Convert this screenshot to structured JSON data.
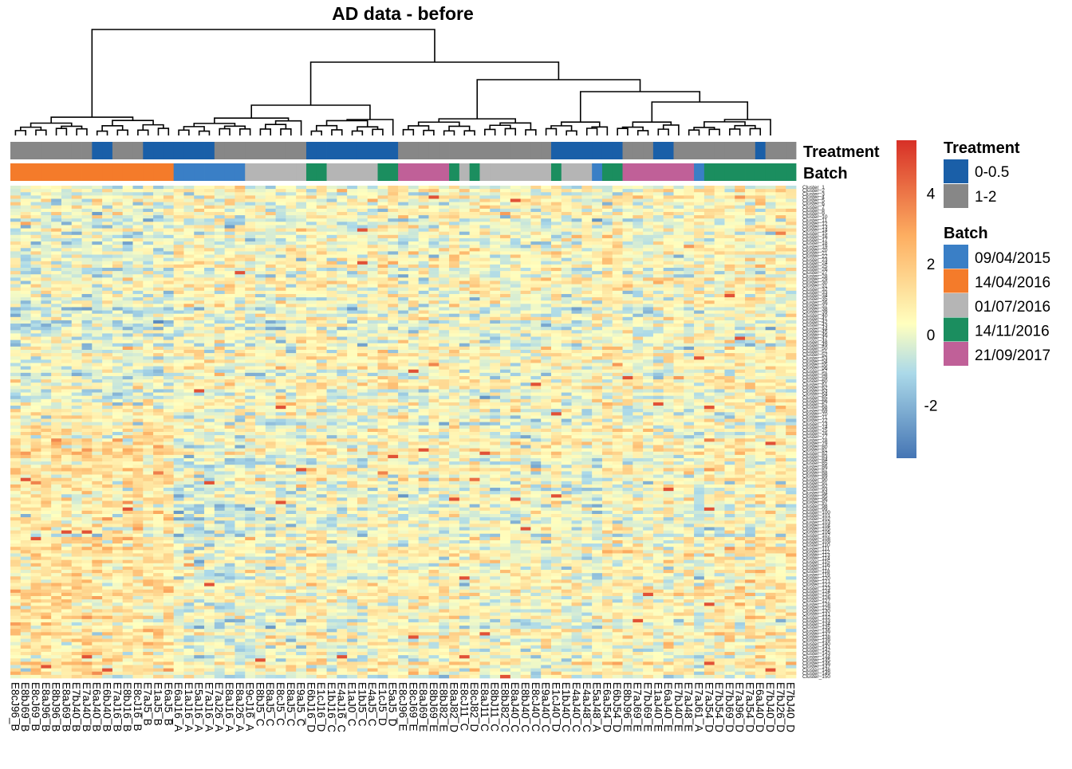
{
  "chart_data": {
    "type": "heatmap",
    "title": "AD data - before",
    "annotation_tracks": [
      "Treatment",
      "Batch"
    ],
    "columns": [
      {
        "label": "E8cJ96_B",
        "treatment": "1-2",
        "batch": "14/04/2016"
      },
      {
        "label": "E8bJ69_B",
        "treatment": "1-2",
        "batch": "14/04/2016"
      },
      {
        "label": "E8cJ69_B",
        "treatment": "1-2",
        "batch": "14/04/2016"
      },
      {
        "label": "E8aJ96_B",
        "treatment": "1-2",
        "batch": "14/04/2016"
      },
      {
        "label": "E8bJ96_B",
        "treatment": "1-2",
        "batch": "14/04/2016"
      },
      {
        "label": "E8aJ69_B",
        "treatment": "1-2",
        "batch": "14/04/2016"
      },
      {
        "label": "E7bJ40_B",
        "treatment": "1-2",
        "batch": "14/04/2016"
      },
      {
        "label": "E7aJ40_B",
        "treatment": "1-2",
        "batch": "14/04/2016"
      },
      {
        "label": "E6aJ40_B",
        "treatment": "0-0.5",
        "batch": "14/04/2016"
      },
      {
        "label": "E6bJ40_B",
        "treatment": "0-0.5",
        "batch": "14/04/2016"
      },
      {
        "label": "E7aJ16_B",
        "treatment": "1-2",
        "batch": "14/04/2016"
      },
      {
        "label": "E8bJ16_B",
        "treatment": "1-2",
        "batch": "14/04/2016"
      },
      {
        "label": "E8cJ16_B",
        "treatment": "1-2",
        "batch": "14/04/2016"
      },
      {
        "label": "E7aJ5_B",
        "treatment": "0-0.5",
        "batch": "14/04/2016"
      },
      {
        "label": "E1aJ5_B",
        "treatment": "0-0.5",
        "batch": "14/04/2016"
      },
      {
        "label": "E6aJ5_B",
        "treatment": "0-0.5",
        "batch": "14/04/2016"
      },
      {
        "label": "E6aJ16_A",
        "treatment": "0-0.5",
        "batch": "09/04/2015"
      },
      {
        "label": "E1aJ16_A",
        "treatment": "0-0.5",
        "batch": "09/04/2015"
      },
      {
        "label": "E5aJ16_A",
        "treatment": "0-0.5",
        "batch": "09/04/2015"
      },
      {
        "label": "E7aJ16_A",
        "treatment": "0-0.5",
        "batch": "09/04/2015"
      },
      {
        "label": "E7aJ26_A",
        "treatment": "1-2",
        "batch": "09/04/2015"
      },
      {
        "label": "E8aJ16_A",
        "treatment": "1-2",
        "batch": "09/04/2015"
      },
      {
        "label": "E8aJ26_A",
        "treatment": "1-2",
        "batch": "09/04/2015"
      },
      {
        "label": "E9cJ16_A",
        "treatment": "1-2",
        "batch": "01/07/2016"
      },
      {
        "label": "E8bJ5_C",
        "treatment": "1-2",
        "batch": "01/07/2016"
      },
      {
        "label": "E8aJ5_C",
        "treatment": "1-2",
        "batch": "01/07/2016"
      },
      {
        "label": "E8cJ5_C",
        "treatment": "1-2",
        "batch": "01/07/2016"
      },
      {
        "label": "E8aJ5_C",
        "treatment": "1-2",
        "batch": "01/07/2016"
      },
      {
        "label": "E9aJ5_C",
        "treatment": "1-2",
        "batch": "01/07/2016"
      },
      {
        "label": "E6bJ16_D",
        "treatment": "0-0.5",
        "batch": "14/11/2016"
      },
      {
        "label": "E1cJ16_D",
        "treatment": "0-0.5",
        "batch": "14/11/2016"
      },
      {
        "label": "E1bJ16_C",
        "treatment": "0-0.5",
        "batch": "01/07/2016"
      },
      {
        "label": "E4aJ16_C",
        "treatment": "0-0.5",
        "batch": "01/07/2016"
      },
      {
        "label": "E1aJ0_C",
        "treatment": "0-0.5",
        "batch": "01/07/2016"
      },
      {
        "label": "E1bJ5_C",
        "treatment": "0-0.5",
        "batch": "01/07/2016"
      },
      {
        "label": "E4aJ5_C",
        "treatment": "0-0.5",
        "batch": "01/07/2016"
      },
      {
        "label": "E1cJ5_D",
        "treatment": "0-0.5",
        "batch": "14/11/2016"
      },
      {
        "label": "E5aJ5_D",
        "treatment": "0-0.5",
        "batch": "14/11/2016"
      },
      {
        "label": "E8cJ96_E",
        "treatment": "1-2",
        "batch": "21/09/2017"
      },
      {
        "label": "E8cJ69_E",
        "treatment": "1-2",
        "batch": "21/09/2017"
      },
      {
        "label": "E8aJ69_E",
        "treatment": "1-2",
        "batch": "21/09/2017"
      },
      {
        "label": "E8bJ69_E",
        "treatment": "1-2",
        "batch": "21/09/2017"
      },
      {
        "label": "E8bJ82_E",
        "treatment": "1-2",
        "batch": "21/09/2017"
      },
      {
        "label": "E8aJ82_D",
        "treatment": "1-2",
        "batch": "14/11/2016"
      },
      {
        "label": "E8cJ11_C",
        "treatment": "1-2",
        "batch": "01/07/2016"
      },
      {
        "label": "E8cJ82_D",
        "treatment": "1-2",
        "batch": "14/11/2016"
      },
      {
        "label": "E8aJ11_C",
        "treatment": "1-2",
        "batch": "01/07/2016"
      },
      {
        "label": "E8bJ11_C",
        "treatment": "1-2",
        "batch": "01/07/2016"
      },
      {
        "label": "E8bJ82_C",
        "treatment": "1-2",
        "batch": "01/07/2016"
      },
      {
        "label": "E8aJ40_C",
        "treatment": "1-2",
        "batch": "01/07/2016"
      },
      {
        "label": "E8bJ40_C",
        "treatment": "1-2",
        "batch": "01/07/2016"
      },
      {
        "label": "E8cJ40_C",
        "treatment": "1-2",
        "batch": "01/07/2016"
      },
      {
        "label": "E9aJ40_C",
        "treatment": "1-2",
        "batch": "01/07/2016"
      },
      {
        "label": "E1cJ40_D",
        "treatment": "0-0.5",
        "batch": "14/11/2016"
      },
      {
        "label": "E1bJ40_C",
        "treatment": "0-0.5",
        "batch": "01/07/2016"
      },
      {
        "label": "E4aJ40_C",
        "treatment": "0-0.5",
        "batch": "01/07/2016"
      },
      {
        "label": "E4aJ48_C",
        "treatment": "0-0.5",
        "batch": "01/07/2016"
      },
      {
        "label": "E5aJ48_A",
        "treatment": "0-0.5",
        "batch": "09/04/2015"
      },
      {
        "label": "E6aJ54_D",
        "treatment": "0-0.5",
        "batch": "14/11/2016"
      },
      {
        "label": "E6bJ54_D",
        "treatment": "0-0.5",
        "batch": "14/11/2016"
      },
      {
        "label": "E8bJ96_E",
        "treatment": "1-2",
        "batch": "21/09/2017"
      },
      {
        "label": "E7aJ69_E",
        "treatment": "1-2",
        "batch": "21/09/2017"
      },
      {
        "label": "E7bJ69_E",
        "treatment": "1-2",
        "batch": "21/09/2017"
      },
      {
        "label": "E1aJ40_E",
        "treatment": "0-0.5",
        "batch": "21/09/2017"
      },
      {
        "label": "E6aJ40_E",
        "treatment": "0-0.5",
        "batch": "21/09/2017"
      },
      {
        "label": "E7bJ40_E",
        "treatment": "1-2",
        "batch": "21/09/2017"
      },
      {
        "label": "E7aJ48_E",
        "treatment": "1-2",
        "batch": "21/09/2017"
      },
      {
        "label": "E7aJ61_A",
        "treatment": "1-2",
        "batch": "09/04/2015"
      },
      {
        "label": "E7aJ54_D",
        "treatment": "1-2",
        "batch": "14/11/2016"
      },
      {
        "label": "E7bJ54_D",
        "treatment": "1-2",
        "batch": "14/11/2016"
      },
      {
        "label": "E7bJ69_D",
        "treatment": "1-2",
        "batch": "14/11/2016"
      },
      {
        "label": "E7aJ96_D",
        "treatment": "1-2",
        "batch": "14/11/2016"
      },
      {
        "label": "E7aJ54_D",
        "treatment": "1-2",
        "batch": "14/11/2016"
      },
      {
        "label": "E6aJ40_D",
        "treatment": "0-0.5",
        "batch": "14/11/2016"
      },
      {
        "label": "E7bJ40_D",
        "treatment": "1-2",
        "batch": "14/11/2016"
      },
      {
        "label": "E7bJ26_D",
        "treatment": "1-2",
        "batch": "14/11/2016"
      },
      {
        "label": "E7bJ40_D",
        "treatment": "1-2",
        "batch": "14/11/2016"
      }
    ],
    "row_label_prefix": "Cluster_",
    "n_rows": 150,
    "color_scale": {
      "ticks": [
        4,
        2,
        0,
        -2
      ],
      "min": -3.5,
      "max": 5.5,
      "colors": [
        "#4575b4",
        "#abd9e9",
        "#ffffbf",
        "#fdae61",
        "#d73027"
      ]
    },
    "legends": {
      "treatment": {
        "title": "Treatment",
        "entries": [
          {
            "label": "0-0.5",
            "color": "#1a5fa8"
          },
          {
            "label": "1-2",
            "color": "#878787"
          }
        ]
      },
      "batch": {
        "title": "Batch",
        "entries": [
          {
            "label": "09/04/2015",
            "color": "#3a7fc6"
          },
          {
            "label": "14/04/2016",
            "color": "#f47b2a"
          },
          {
            "label": "01/07/2016",
            "color": "#b5b5b5"
          },
          {
            "label": "14/11/2016",
            "color": "#1b8e5f"
          },
          {
            "label": "21/09/2017",
            "color": "#c06098"
          }
        ]
      }
    }
  }
}
